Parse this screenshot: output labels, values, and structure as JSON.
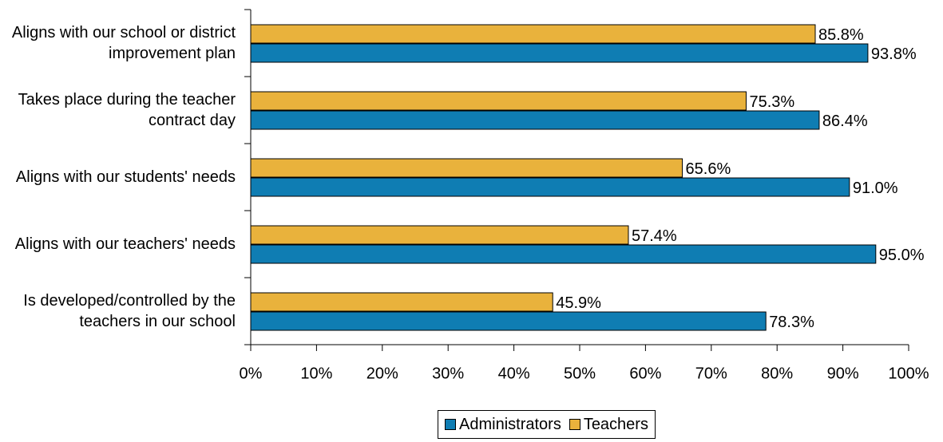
{
  "chart_data": {
    "type": "hbar",
    "categories": [
      "Aligns with our school or district improvement plan",
      "Takes place during the teacher contract day",
      "Aligns with our students' needs",
      "Aligns with our teachers' needs",
      "Is developed/controlled by the teachers in our school"
    ],
    "series": [
      {
        "name": "Administrators",
        "color": "#0f7db3",
        "values": [
          93.8,
          86.4,
          91.0,
          95.0,
          78.3
        ],
        "value_labels": [
          "93.8%",
          "86.4%",
          "91.0%",
          "95.0%",
          "78.3%"
        ]
      },
      {
        "name": "Teachers",
        "color": "#e9b23c",
        "values": [
          85.8,
          75.3,
          65.6,
          57.4,
          45.9
        ],
        "value_labels": [
          "85.8%",
          "75.3%",
          "65.6%",
          "57.4%",
          "45.9%"
        ]
      }
    ],
    "xlim": [
      0,
      100
    ],
    "xticks": [
      {
        "value": 0,
        "label": "0%"
      },
      {
        "value": 10,
        "label": "10%"
      },
      {
        "value": 20,
        "label": "20%"
      },
      {
        "value": 30,
        "label": "30%"
      },
      {
        "value": 40,
        "label": "40%"
      },
      {
        "value": 50,
        "label": "50%"
      },
      {
        "value": 60,
        "label": "60%"
      },
      {
        "value": 70,
        "label": "70%"
      },
      {
        "value": 80,
        "label": "80%"
      },
      {
        "value": 90,
        "label": "90%"
      },
      {
        "value": 100,
        "label": "100%"
      }
    ],
    "grid": false,
    "legend": "bottom"
  }
}
